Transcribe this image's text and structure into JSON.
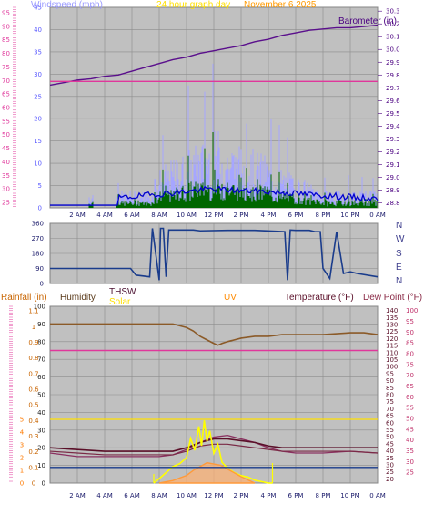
{
  "header": {
    "windspeed_label": "Windspeed (mph)",
    "graph_title": "24 hour graph day",
    "date_label": "November 6 2025",
    "barometer_label": "Barometer (in)"
  },
  "direction_panel": {
    "compass": [
      "N",
      "W",
      "S",
      "E",
      "N"
    ]
  },
  "bottom_header": {
    "rainfall_label": "Rainfall (in)",
    "humidity_label": "Humidity",
    "thsw_label": "THSW",
    "solar_label": "Solar",
    "uv_label": "UV",
    "temperature_label": "Temperature (°F)",
    "dewpoint_label": "Dew Point (°F)"
  },
  "colors": {
    "plot_bg": "#c0c0c0",
    "grid": "#8c8c8c",
    "windspeed": "#a6a6ff",
    "wind_gust": "#0000cc",
    "wind_avg": "#006600",
    "barometer": "#5a0f8c",
    "pink_line": "#e0379b",
    "direction": "#1a3c8c",
    "humidity": "#8b5a28",
    "temperature": "#5a0f28",
    "dewpoint": "#7a2a46",
    "thsw": "#8a3060",
    "solar": "#ffff00",
    "uv": "#ff9a3a",
    "rain": "#1a3c8c"
  },
  "chart_data": [
    {
      "type": "line",
      "name": "top",
      "x_ticks": [
        "2 AM",
        "4 AM",
        "6 AM",
        "8 AM",
        "10 AM",
        "12 PM",
        "2 PM",
        "4 PM",
        "6 PM",
        "8 PM",
        "10 PM",
        "0 AM"
      ],
      "left_axis_outer": [
        25,
        30,
        35,
        40,
        45,
        50,
        55,
        60,
        65,
        70,
        75,
        80,
        85,
        90,
        95
      ],
      "left_axis_inner": [
        0,
        5,
        10,
        15,
        20,
        25,
        30,
        35,
        40,
        45
      ],
      "right_axis": [
        "28.8",
        "28.9",
        "29.0",
        "29.1",
        "29.2",
        "29.3",
        "29.4",
        "29.5",
        "29.6",
        "29.7",
        "29.8",
        "29.9",
        "30.0",
        "30.1",
        "30.2",
        "30.3"
      ],
      "ylim_windspeed": [
        0,
        45
      ],
      "ylim_barometer": [
        28.76,
        30.33
      ],
      "series": [
        {
          "name": "Barometer (in)",
          "x": [
            0,
            1,
            2,
            3,
            4,
            5,
            6,
            7,
            8,
            9,
            10,
            11,
            12,
            13,
            14,
            15,
            16,
            17,
            18,
            19,
            20,
            21,
            22,
            23,
            24
          ],
          "values": [
            29.72,
            29.74,
            29.76,
            29.77,
            29.79,
            29.8,
            29.83,
            29.86,
            29.89,
            29.92,
            29.94,
            29.97,
            29.99,
            30.01,
            30.03,
            30.06,
            30.08,
            30.11,
            30.13,
            30.15,
            30.16,
            30.17,
            30.17,
            30.18,
            30.19
          ]
        },
        {
          "x": [
            0,
            24
          ],
          "values": [
            29.75,
            29.75
          ]
        }
      ]
    },
    {
      "type": "line",
      "name": "wind-direction",
      "left_axis": [
        0,
        90,
        180,
        270,
        360
      ],
      "ylim": [
        0,
        360
      ],
      "series": [
        {
          "x": [
            0,
            5.9,
            6.3,
            7.3,
            7.5,
            8.0,
            8.1,
            8.3,
            8.5,
            8.7,
            10.3,
            10.5,
            11,
            13,
            15,
            17.2,
            17.4,
            17.6,
            18,
            19,
            19.4,
            19.8,
            20,
            20.5,
            21,
            21.5,
            22,
            22.5,
            24
          ],
          "values": [
            90,
            90,
            50,
            40,
            330,
            20,
            330,
            330,
            40,
            320,
            320,
            320,
            315,
            318,
            318,
            310,
            20,
            320,
            318,
            318,
            310,
            310,
            90,
            30,
            310,
            60,
            70,
            60,
            40
          ]
        }
      ]
    },
    {
      "type": "line",
      "name": "bottom",
      "x_ticks": [
        "2 AM",
        "4 AM",
        "6 AM",
        "8 AM",
        "10 AM",
        "12 PM",
        "2 PM",
        "4 PM",
        "6 PM",
        "8 PM",
        "10 PM",
        "0 AM"
      ],
      "axis_humidity": [
        0,
        10,
        20,
        30,
        40,
        50,
        60,
        70,
        80,
        90,
        100
      ],
      "axis_rain": [
        "0",
        "0.1",
        "0.2",
        "0.3",
        "0.4",
        "0.5",
        "0.6",
        "0.7",
        "0.8",
        "0.9",
        "1",
        "1.1"
      ],
      "axis_uv": [
        0,
        1,
        2,
        3,
        4,
        5
      ],
      "axis_temperature": [
        20,
        25,
        30,
        35,
        40,
        45,
        50,
        55,
        60,
        65,
        70,
        75,
        80,
        85,
        90,
        95,
        100,
        105,
        110,
        115,
        120,
        125,
        130,
        135,
        140
      ],
      "axis_dewpoint": [
        25,
        30,
        35,
        40,
        45,
        50,
        55,
        60,
        65,
        70,
        75,
        80,
        85,
        90,
        95,
        100
      ],
      "ylim_humidity": [
        0,
        100
      ],
      "series": [
        {
          "name": "Humidity",
          "x": [
            0,
            2,
            4,
            6,
            8,
            9,
            10,
            10.5,
            11,
            11.5,
            12,
            12.3,
            12.6,
            13,
            14,
            15,
            16,
            17,
            18,
            20,
            22,
            23,
            24
          ],
          "values": [
            90,
            90,
            90,
            90,
            90,
            90,
            88,
            86,
            83,
            81,
            79,
            78,
            79,
            80,
            82,
            83,
            83,
            84,
            84,
            84,
            85,
            85,
            84
          ]
        },
        {
          "x": [
            0,
            24
          ],
          "values": [
            75,
            75
          ]
        },
        {
          "name": "THSW",
          "x": [
            0,
            2,
            4,
            6,
            8,
            9,
            10,
            11,
            12,
            13,
            14,
            15,
            16,
            17,
            18,
            20,
            22,
            24
          ],
          "values": [
            17,
            15,
            15,
            15,
            15,
            16,
            19,
            23,
            26,
            27,
            25,
            23,
            20,
            18,
            17,
            17,
            18,
            17
          ]
        },
        {
          "name": "Temperature (°F)",
          "x": [
            0,
            2,
            4,
            6,
            8,
            9,
            10,
            11,
            12,
            13,
            14,
            15,
            16,
            17,
            18,
            20,
            22,
            24
          ],
          "values": [
            20,
            19,
            18,
            18,
            18,
            18,
            20,
            23,
            25,
            25,
            24,
            23,
            21,
            20,
            20,
            20,
            20,
            20
          ]
        },
        {
          "name": "Dew Point (°F)",
          "x": [
            0,
            2,
            4,
            6,
            8,
            9,
            10,
            11,
            12,
            13,
            14,
            15,
            16,
            17,
            18,
            20,
            22,
            24
          ],
          "values": [
            18,
            17,
            16,
            16,
            16,
            16,
            18,
            21,
            22,
            22,
            21,
            20,
            19,
            18,
            18,
            18,
            18,
            17
          ]
        },
        {
          "name": "Solar",
          "x": [
            7.6,
            8,
            8.5,
            9,
            9.5,
            10,
            10.3,
            10.6,
            10.9,
            11.1,
            11.3,
            11.5,
            11.7,
            12,
            12.3,
            12.6,
            13,
            13.5,
            14,
            14.5,
            15,
            15.5,
            16,
            16.3
          ],
          "values": [
            0,
            0.03,
            0.07,
            0.11,
            0.13,
            0.17,
            0.3,
            0.22,
            0.38,
            0.25,
            0.42,
            0.28,
            0.35,
            0.2,
            0.26,
            0.14,
            0.1,
            0.07,
            0.05,
            0.04,
            0.02,
            0.01,
            0,
            0
          ]
        },
        {
          "name": "UV",
          "x": [
            8,
            9,
            10,
            10.5,
            11,
            11.5,
            12,
            12.5,
            13,
            13.5,
            14,
            15
          ],
          "values": [
            0,
            0.2,
            0.6,
            1.0,
            1.3,
            1.6,
            1.5,
            1.4,
            1.1,
            0.8,
            0.5,
            0
          ]
        },
        {
          "name": "Rainfall (in)",
          "x": [
            0,
            24
          ],
          "values": [
            0.1,
            0.1
          ]
        }
      ]
    }
  ]
}
